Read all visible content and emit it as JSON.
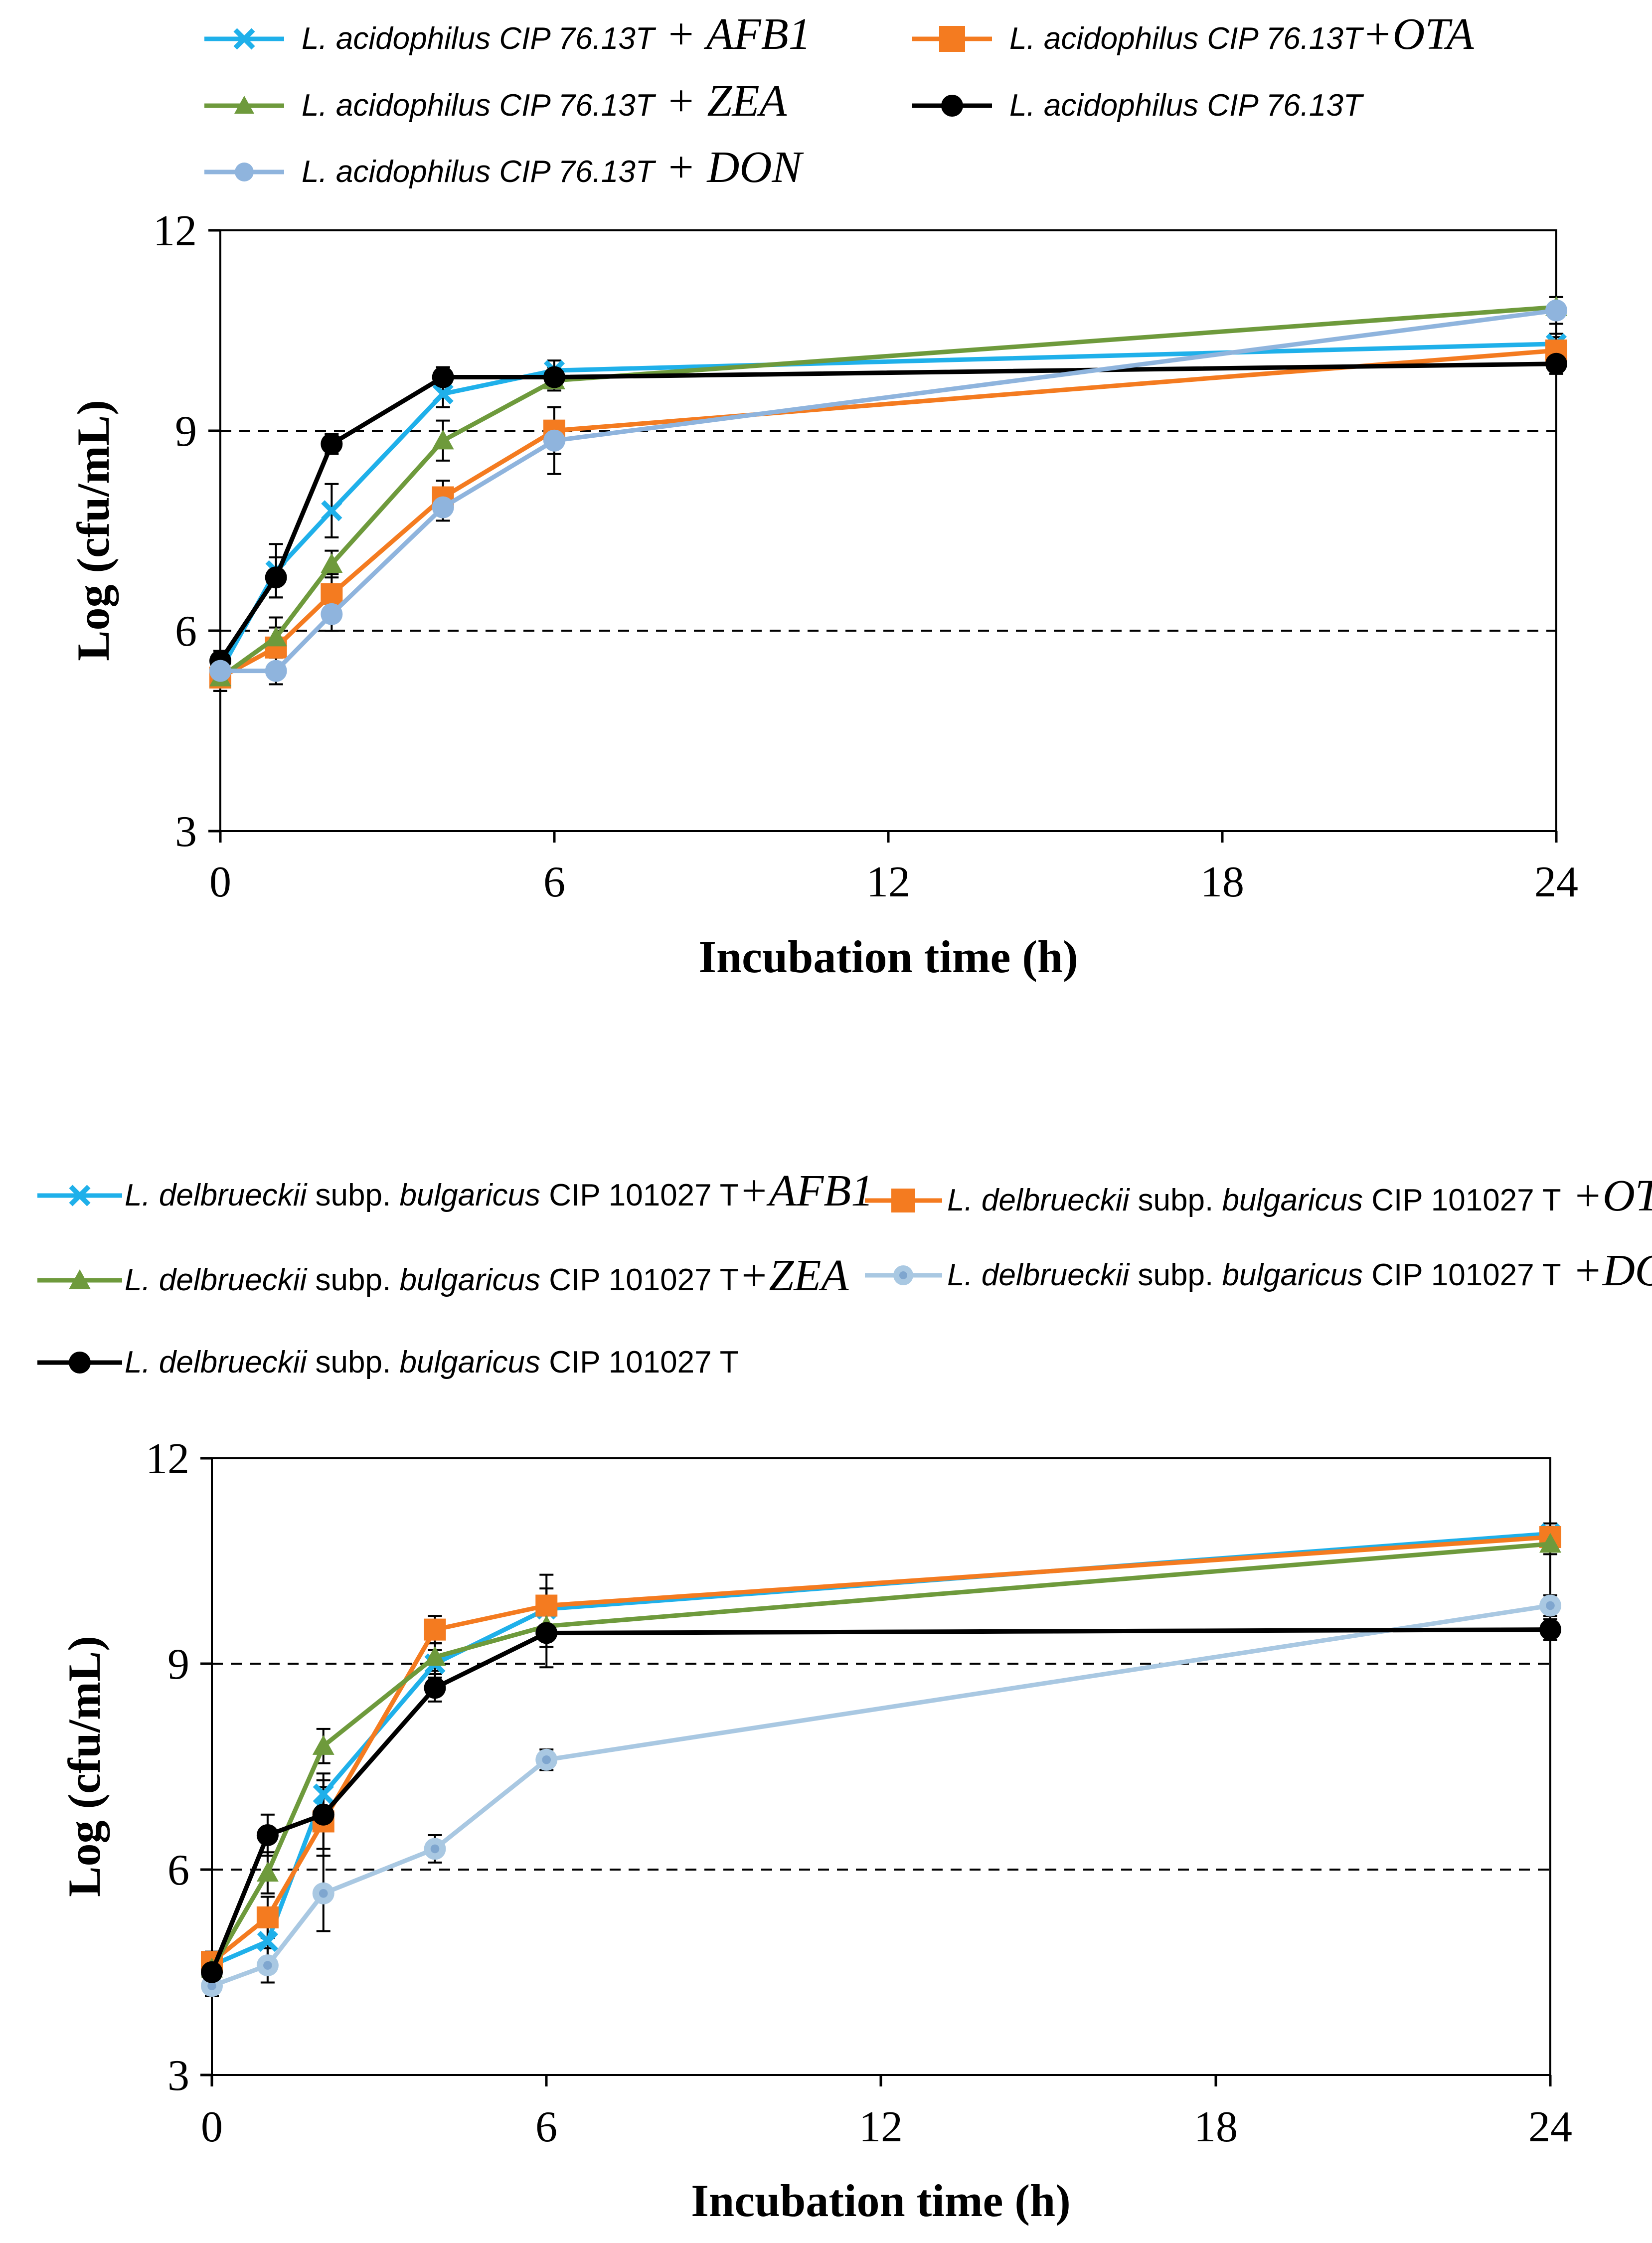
{
  "chart_data": [
    {
      "type": "line",
      "xlabel": "Incubation time (h)",
      "ylabel": "Log (cfu/mL)",
      "xlim": [
        0,
        24
      ],
      "ylim": [
        3,
        12
      ],
      "xticks": [
        "0",
        "6",
        "12",
        "18",
        "24"
      ],
      "yticks": [
        "3",
        "6",
        "9",
        "12"
      ],
      "x": [
        0,
        1,
        2,
        4,
        6,
        24
      ],
      "series": [
        {
          "id": "afb1",
          "marker": "x",
          "color": "#1FB0EA",
          "label_main": "L. acidophilus CIP 76.13T",
          "label_suffix": " +  AFB1",
          "values": [
            5.4,
            6.9,
            7.8,
            9.55,
            9.9,
            10.3
          ],
          "errors": [
            0.15,
            0.4,
            0.4,
            0.2,
            0.15,
            0.15
          ]
        },
        {
          "id": "ota",
          "marker": "square",
          "color": "#F47B20",
          "label_main": "L. acidophilus CIP 76.13T",
          "label_suffix": "+OTA",
          "values": [
            5.3,
            5.75,
            6.55,
            8.0,
            9.0,
            10.2
          ],
          "errors": [
            0.2,
            0.3,
            0.3,
            0.25,
            0.35,
            0.2
          ]
        },
        {
          "id": "zea",
          "marker": "triangle",
          "color": "#6E9A3C",
          "label_main": "L. acidophilus CIP 76.13T",
          "label_suffix": " +  ZEA",
          "values": [
            5.3,
            5.9,
            7.0,
            8.85,
            9.75,
            10.85
          ],
          "errors": [
            0.2,
            0.3,
            0.2,
            0.3,
            0.15,
            0.15
          ]
        },
        {
          "id": "control",
          "marker": "circle",
          "color": "#000000",
          "label_main": "L. acidophilus CIP 76.13T",
          "label_suffix": "",
          "values": [
            5.55,
            6.8,
            8.8,
            9.8,
            9.8,
            10.0
          ],
          "errors": [
            0.15,
            0.3,
            0.15,
            0.15,
            0.15,
            0.15
          ]
        },
        {
          "id": "don",
          "marker": "circle",
          "color": "#8FB4DD",
          "label_main": "L. acidophilus CIP 76.13T",
          "label_suffix": " +  DON",
          "values": [
            5.4,
            5.4,
            6.25,
            7.85,
            8.85,
            10.8
          ],
          "errors": [
            0.2,
            0.2,
            0.25,
            0.2,
            0.5,
            0.2
          ]
        }
      ]
    },
    {
      "type": "line",
      "xlabel": "Incubation time (h)",
      "ylabel": "Log (cfu/mL)",
      "xlim": [
        0,
        24
      ],
      "ylim": [
        3,
        12
      ],
      "xticks": [
        "0",
        "6",
        "12",
        "18",
        "24"
      ],
      "yticks": [
        "3",
        "6",
        "9",
        "12"
      ],
      "x": [
        0,
        1,
        2,
        4,
        6,
        24
      ],
      "series": [
        {
          "id": "afb1",
          "marker": "x",
          "color": "#1FB0EA",
          "label_species": "L. delbrueckii",
          "label_subsp": " subp. ",
          "label_strain": "bulgaricus",
          "label_cip": " CIP 101027 T",
          "label_suffix": "+AFB1",
          "values": [
            4.6,
            4.95,
            7.1,
            9.0,
            9.8,
            10.9
          ],
          "errors": [
            0.15,
            0.3,
            0.3,
            0.2,
            0.3,
            0.15
          ]
        },
        {
          "id": "ota",
          "marker": "square",
          "color": "#F47B20",
          "label_species": "L. delbrueckii",
          "label_subsp": " subp. ",
          "label_strain": "bulgaricus",
          "label_cip": " CIP 101027 T",
          "label_suffix": "  +OTA",
          "values": [
            4.65,
            5.3,
            6.7,
            9.5,
            9.85,
            10.85
          ],
          "errors": [
            0.15,
            0.3,
            0.5,
            0.2,
            0.45,
            0.15
          ]
        },
        {
          "id": "zea",
          "marker": "triangle",
          "color": "#6E9A3C",
          "label_species": "L. delbrueckii",
          "label_subsp": " subp. ",
          "label_strain": "bulgaricus",
          "label_cip": " CIP 101027 T",
          "label_suffix": "+ZEA",
          "values": [
            4.55,
            5.95,
            7.8,
            9.1,
            9.55,
            10.75
          ],
          "errors": [
            0.15,
            0.3,
            0.25,
            0.2,
            0.3,
            0.15
          ]
        },
        {
          "id": "don",
          "marker": "circle-light",
          "color": "#A9C8E2",
          "label_species": "L. delbrueckii",
          "label_subsp": " subp. ",
          "label_strain": "bulgaricus",
          "label_cip": " CIP 101027 T",
          "label_suffix": "  +DON",
          "values": [
            4.3,
            4.6,
            5.65,
            6.3,
            7.6,
            9.85
          ],
          "errors": [
            0.15,
            0.25,
            0.55,
            0.2,
            0.15,
            0.15
          ]
        },
        {
          "id": "control",
          "marker": "circle",
          "color": "#000000",
          "label_species": "L. delbrueckii",
          "label_subsp": " subp. ",
          "label_strain": "bulgaricus",
          "label_cip": " CIP 101027 T",
          "label_suffix": "",
          "values": [
            4.5,
            6.5,
            6.8,
            8.65,
            9.45,
            9.5
          ],
          "errors": [
            0.15,
            0.3,
            0.5,
            0.2,
            0.5,
            0.15
          ]
        }
      ]
    }
  ]
}
